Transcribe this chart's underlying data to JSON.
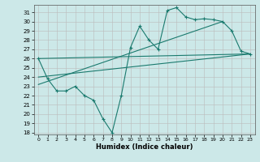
{
  "xlabel": "Humidex (Indice chaleur)",
  "background_color": "#cce8e8",
  "grid_color": "#bbbbbb",
  "line_color": "#1a7a6e",
  "xlim": [
    -0.5,
    23.5
  ],
  "ylim": [
    17.8,
    31.8
  ],
  "yticks": [
    18,
    19,
    20,
    21,
    22,
    23,
    24,
    25,
    26,
    27,
    28,
    29,
    30,
    31
  ],
  "xticks": [
    0,
    1,
    2,
    3,
    4,
    5,
    6,
    7,
    8,
    9,
    10,
    11,
    12,
    13,
    14,
    15,
    16,
    17,
    18,
    19,
    20,
    21,
    22,
    23
  ],
  "line1_x": [
    0,
    1,
    2,
    3,
    4,
    5,
    6,
    7,
    8,
    9,
    10,
    11,
    12,
    13,
    14,
    15,
    16,
    17,
    18,
    19,
    20,
    21,
    22,
    23
  ],
  "line1_y": [
    26,
    23.8,
    22.5,
    22.5,
    23,
    22,
    21.5,
    19.5,
    18,
    22,
    27.2,
    29.5,
    28,
    27,
    31.2,
    31.5,
    30.5,
    30.2,
    30.3,
    30.2,
    30,
    29,
    26.8,
    26.5
  ],
  "line2_x": [
    0,
    23
  ],
  "line2_y": [
    26,
    26.5
  ],
  "line3_x": [
    0,
    20
  ],
  "line3_y": [
    23.2,
    30
  ],
  "line4_x": [
    0,
    23
  ],
  "line4_y": [
    24.0,
    26.5
  ]
}
